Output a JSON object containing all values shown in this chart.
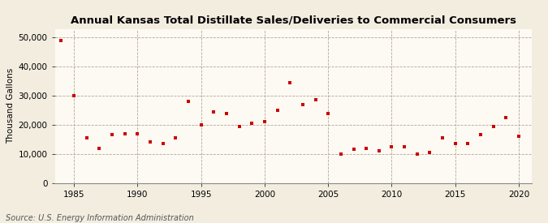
{
  "title": "Annual Kansas Total Distillate Sales/Deliveries to Commercial Consumers",
  "ylabel": "Thousand Gallons",
  "source": "Source: U.S. Energy Information Administration",
  "background_color": "#f3ede0",
  "plot_background_color": "#fdfaf3",
  "marker_color": "#cc0000",
  "xlim": [
    1983.5,
    2021
  ],
  "ylim": [
    0,
    53000
  ],
  "yticks": [
    0,
    10000,
    20000,
    30000,
    40000,
    50000
  ],
  "xticks": [
    1985,
    1990,
    1995,
    2000,
    2005,
    2010,
    2015,
    2020
  ],
  "years": [
    1984,
    1985,
    1986,
    1987,
    1988,
    1989,
    1990,
    1991,
    1992,
    1993,
    1994,
    1995,
    1996,
    1997,
    1998,
    1999,
    2000,
    2001,
    2002,
    2003,
    2004,
    2005,
    2006,
    2007,
    2008,
    2009,
    2010,
    2011,
    2012,
    2013,
    2014,
    2015,
    2016,
    2017,
    2018,
    2019,
    2020
  ],
  "values": [
    49000,
    30000,
    15500,
    12000,
    16500,
    17000,
    17000,
    14000,
    13500,
    15500,
    28000,
    20000,
    24500,
    24000,
    19500,
    20500,
    21000,
    25000,
    34500,
    27000,
    28500,
    24000,
    10000,
    11500,
    12000,
    11000,
    12500,
    12500,
    10000,
    10500,
    15500,
    13500,
    13500,
    16500,
    19500,
    22500,
    16000
  ],
  "title_fontsize": 9.5,
  "axis_fontsize": 7.5,
  "source_fontsize": 7.0
}
